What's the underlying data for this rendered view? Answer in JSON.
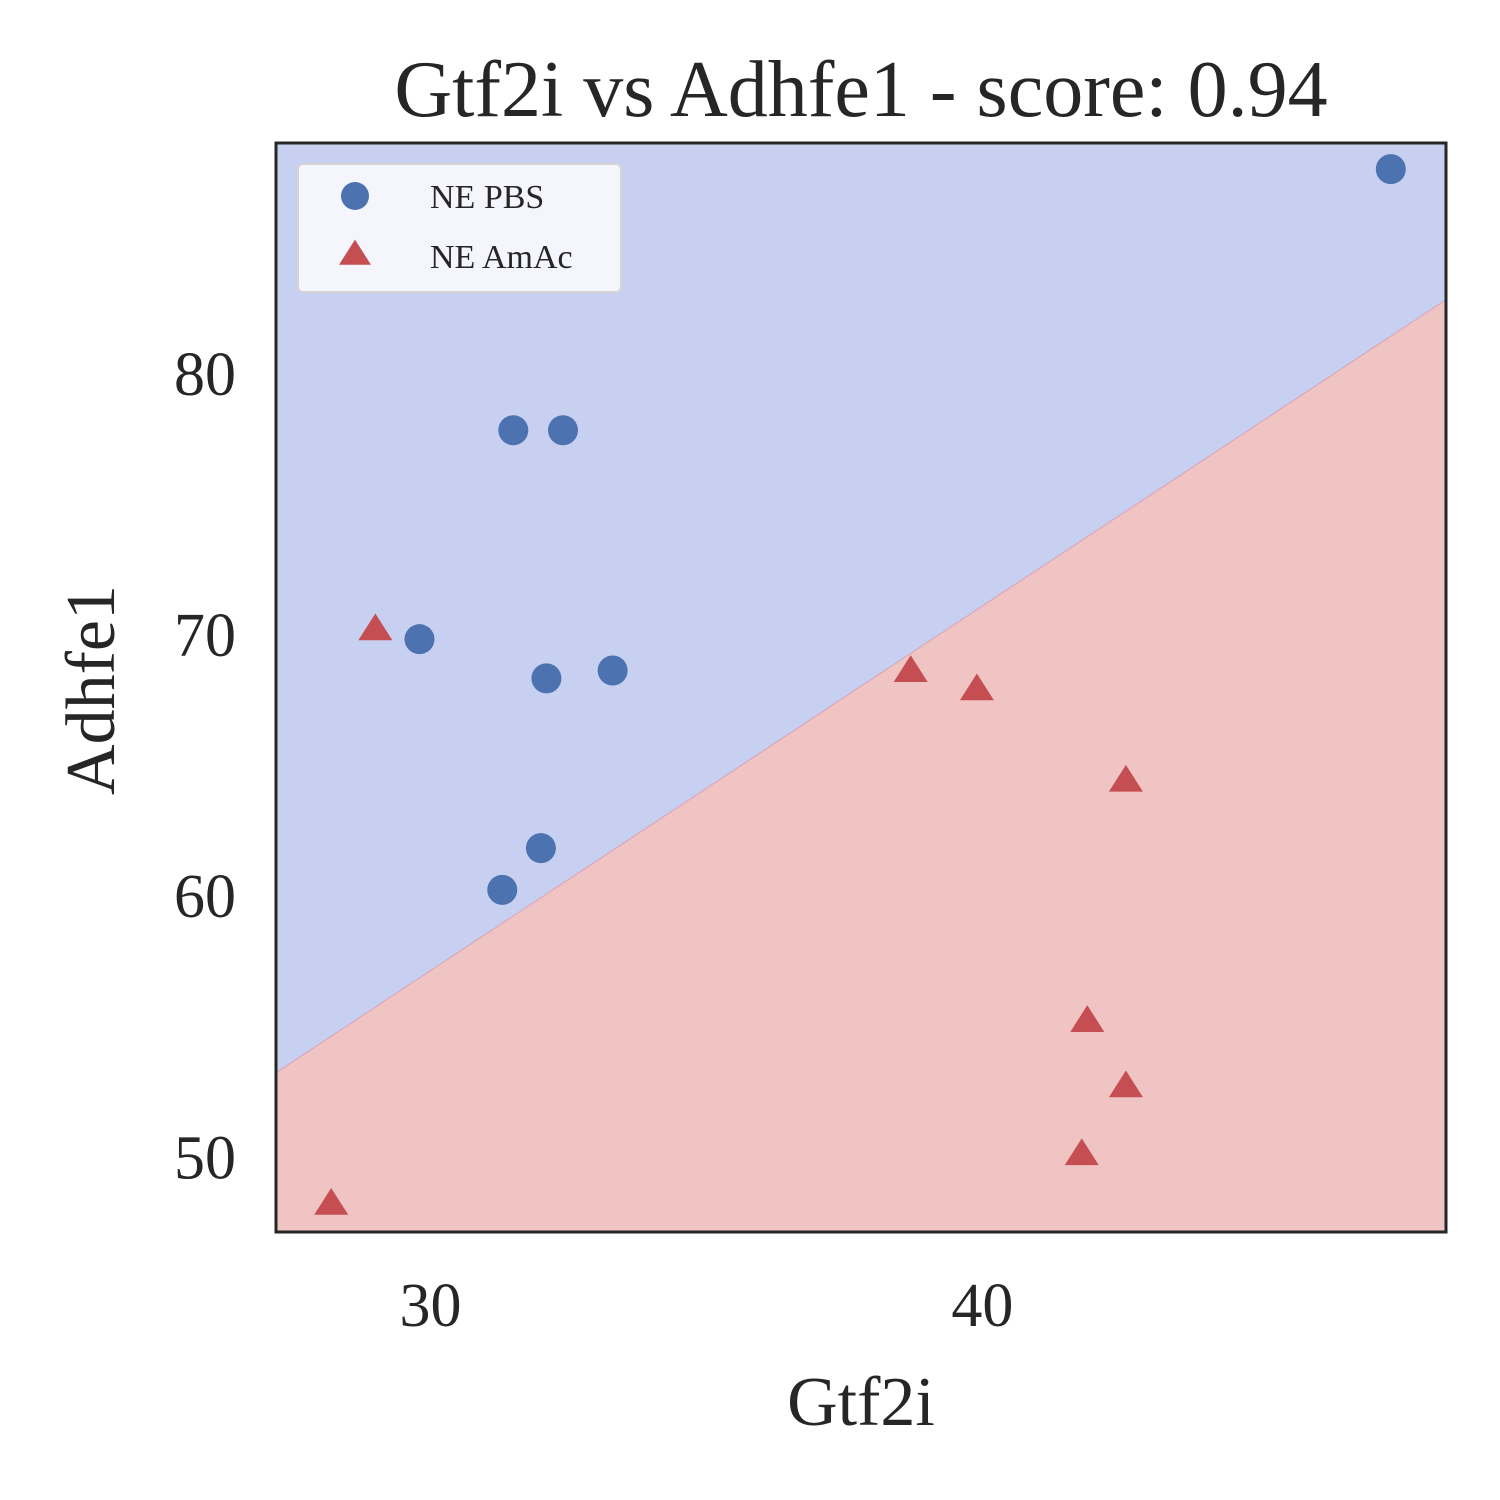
{
  "chart_data": {
    "type": "scatter",
    "title": "Gtf2i vs Adhfe1 - score: 0.94",
    "xlabel": "Gtf2i",
    "ylabel": "Adhfe1",
    "xlim": [
      27.2,
      48.4
    ],
    "ylim": [
      47.1,
      88.8
    ],
    "xticks": [
      30,
      40
    ],
    "yticks": [
      50,
      60,
      70,
      80
    ],
    "grid": false,
    "legend": {
      "placement": "top-left"
    },
    "decision_boundary": {
      "x": [
        27.2,
        48.4
      ],
      "y": [
        53.2,
        82.8
      ]
    },
    "regions": {
      "above_color": "#c8d0f2",
      "below_color": "#efc4c3"
    },
    "series": [
      {
        "name": "NE PBS",
        "marker": "circle",
        "color": "#4c72b0",
        "points": [
          [
            31.5,
            77.8
          ],
          [
            32.4,
            77.8
          ],
          [
            29.8,
            69.8
          ],
          [
            32.1,
            68.3
          ],
          [
            33.3,
            68.6
          ],
          [
            32.0,
            61.8
          ],
          [
            31.3,
            60.2
          ],
          [
            47.4,
            87.8
          ]
        ]
      },
      {
        "name": "NE AmAc",
        "marker": "triangle",
        "color": "#c44e52",
        "points": [
          [
            29.0,
            70.2
          ],
          [
            38.7,
            68.6
          ],
          [
            39.9,
            67.9
          ],
          [
            42.6,
            64.4
          ],
          [
            41.9,
            55.2
          ],
          [
            42.6,
            52.7
          ],
          [
            41.8,
            50.1
          ],
          [
            28.2,
            48.2
          ]
        ]
      }
    ]
  }
}
